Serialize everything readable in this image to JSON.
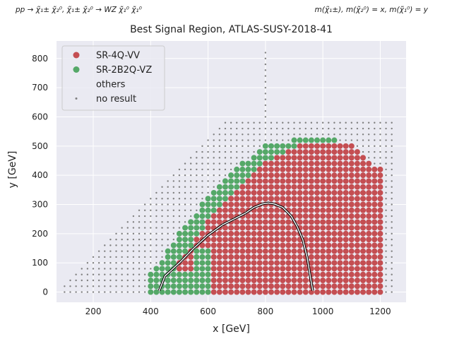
{
  "header": {
    "process": "pp → χ̃₁± χ̃₂⁰, χ̃₁± χ̃₂⁰ → WZ χ̃₁⁰ χ̃₁⁰",
    "masses": "m(χ̃₁±), m(χ̃₂⁰) = x, m(χ̃₁⁰) = y"
  },
  "colors": {
    "background": "#eaeaf2",
    "grid": "#ffffff",
    "sr_4q_vv": "#c44e52",
    "sr_2b2q_vz": "#55a868",
    "no_result": "#808080",
    "exclusion_outer": "#000000",
    "exclusion_inner": "#ffffff"
  },
  "chart_data": {
    "type": "scatter",
    "title": "Best Signal Region, ATLAS-SUSY-2018-41",
    "xlabel": "x [GeV]",
    "ylabel": "y [GeV]",
    "xlim": [
      72,
      1290
    ],
    "ylim": [
      -35,
      860
    ],
    "xticks": [
      200,
      400,
      600,
      800,
      1000,
      1200
    ],
    "yticks": [
      0,
      100,
      200,
      300,
      400,
      500,
      600,
      700,
      800
    ],
    "grid": true,
    "legend_location": "top-left",
    "legend": [
      {
        "label": "SR-4Q-VV",
        "marker": "circle"
      },
      {
        "label": "SR-2B2Q-VZ",
        "marker": "circle"
      },
      {
        "label": "others",
        "marker": "none"
      },
      {
        "label": "no result",
        "marker": "small-dot"
      }
    ],
    "grid_scan": {
      "x_step": 20,
      "y_step": 20,
      "no_result": {
        "x_range": [
          100,
          1240
        ],
        "y_min": 0,
        "y_max_rule": "min(x - 80, 590); x = 800 column extends to 820"
      },
      "results_region": {
        "x_range": [
          400,
          1200
        ],
        "y_min": 0,
        "upper_boundary": [
          [
            400,
            60
          ],
          [
            500,
            200
          ],
          [
            600,
            330
          ],
          [
            700,
            430
          ],
          [
            800,
            500
          ],
          [
            900,
            520
          ],
          [
            1040,
            520
          ],
          [
            1100,
            500
          ],
          [
            1140,
            460
          ],
          [
            1200,
            420
          ]
        ]
      },
      "sr_2b2q_vz_band": {
        "lower_boundary": [
          [
            400,
            0
          ],
          [
            440,
            0
          ],
          [
            480,
            80
          ],
          [
            540,
            160
          ],
          [
            600,
            250
          ],
          [
            660,
            320
          ],
          [
            720,
            380
          ],
          [
            780,
            430
          ],
          [
            840,
            470
          ],
          [
            900,
            490
          ],
          [
            920,
            520
          ]
        ],
        "extra_blocks": [
          {
            "x": [
              400,
              460
            ],
            "y": [
              0,
              80
            ]
          },
          {
            "x": [
              480,
              600
            ],
            "y": [
              0,
              60
            ]
          },
          {
            "x": [
              560,
              600
            ],
            "y": [
              60,
              140
            ]
          }
        ]
      },
      "sr_4q_vv": "all remaining result points"
    },
    "exclusion_contour": {
      "x": [
        430,
        440,
        450,
        500,
        550,
        600,
        650,
        700,
        730,
        760,
        790,
        810,
        830,
        860,
        890,
        910,
        930,
        945,
        955,
        962,
        965
      ],
      "y": [
        5,
        30,
        55,
        100,
        150,
        195,
        230,
        255,
        270,
        290,
        302,
        305,
        302,
        290,
        260,
        225,
        180,
        120,
        60,
        20,
        5
      ]
    }
  }
}
